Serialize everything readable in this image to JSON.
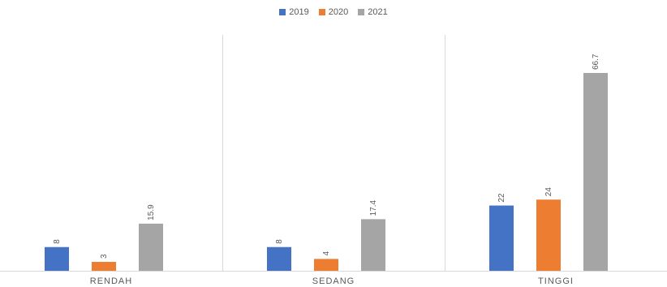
{
  "chart_data": {
    "type": "bar",
    "title": "",
    "xlabel": "",
    "ylabel": "",
    "categories": [
      "RENDAH",
      "SEDANG",
      "TINGGI"
    ],
    "series": [
      {
        "name": "2019",
        "color": "#4472C4",
        "values": [
          8,
          8,
          22
        ],
        "labels": [
          "8",
          "8",
          "22"
        ]
      },
      {
        "name": "2020",
        "color": "#ED7D31",
        "values": [
          3,
          4,
          24
        ],
        "labels": [
          "3",
          "4",
          "24"
        ]
      },
      {
        "name": "2021",
        "color": "#A5A5A5",
        "values": [
          15.9,
          17.4,
          66.7
        ],
        "labels": [
          "15.9",
          "17.4",
          "66.7"
        ]
      }
    ],
    "ylim": [
      0,
      80
    ],
    "grid": false,
    "legend_position": "top-center",
    "data_labels_rotated": true
  }
}
